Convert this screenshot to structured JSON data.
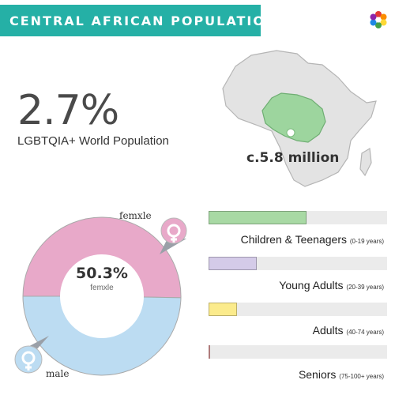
{
  "header": {
    "title": "CENTRAL AFRICAN POPULATION"
  },
  "stat": {
    "value": "2.7%",
    "label": "LGBTQIA+ World Population"
  },
  "region": {
    "population_label": "c.5.8 million"
  },
  "colors": {
    "accent": "#25b0a6",
    "femxle": "#e8a9c9",
    "male": "#bcdcf2",
    "map_land": "#e3e3e3",
    "map_highlight": "#9dd59e"
  },
  "icons": {
    "logo": "flower-logo-icon",
    "map": "africa-map-icon",
    "femxle": "venus-icon",
    "male": "mars-icon"
  },
  "chart_data": [
    {
      "type": "pie",
      "series": [
        {
          "name": "femxle",
          "value": 50.3
        },
        {
          "name": "male",
          "value": 49.7
        }
      ],
      "center_value": "50.3%",
      "center_label": "femxle",
      "legend": [
        "femxle",
        "male"
      ]
    },
    {
      "type": "bar",
      "categories": [
        {
          "name": "Children & Teenagers",
          "range": "(0-19 years)"
        },
        {
          "name": "Young Adults",
          "range": "(20-39 years)"
        },
        {
          "name": "Adults",
          "range": "(40-74 years)"
        },
        {
          "name": "Seniors",
          "range": "(75-100+ years)"
        }
      ],
      "values": [
        55,
        27,
        16,
        1
      ],
      "colors": [
        "#a8d9a4",
        "#d4cbe8",
        "#fbeb8c",
        "#e8a4a4"
      ],
      "ylim": [
        0,
        100
      ]
    }
  ]
}
